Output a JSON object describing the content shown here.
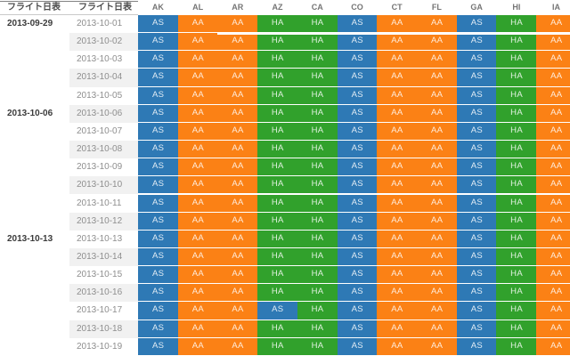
{
  "chart_data": {
    "type": "table",
    "title": "",
    "header": {
      "group_col_label": "フライト日表",
      "date_col_label": "フライト日表",
      "state_columns": [
        "AK",
        "AL",
        "AR",
        "AZ",
        "CA",
        "CO",
        "CT",
        "FL",
        "GA",
        "HI",
        "IA"
      ]
    },
    "legend": {
      "AS": "#2E79B5",
      "AA": "#FB8115",
      "HA": "#31A12C"
    },
    "groups": [
      {
        "label": "2013-09-29",
        "rows": [
          {
            "date": "2013-10-01",
            "values": [
              "AS",
              "AA",
              "AA",
              "HA",
              "HA",
              "AS",
              "AA",
              "AA",
              "AS",
              "HA",
              "AA"
            ]
          },
          {
            "date": "2013-10-02",
            "values": [
              "AS",
              "AA",
              "AA",
              "HA",
              "HA",
              "AS",
              "AA",
              "AA",
              "AS",
              "HA",
              "AA"
            ]
          },
          {
            "date": "2013-10-03",
            "values": [
              "AS",
              "AA",
              "AA",
              "HA",
              "HA",
              "AS",
              "AA",
              "AA",
              "AS",
              "HA",
              "AA"
            ]
          },
          {
            "date": "2013-10-04",
            "values": [
              "AS",
              "AA",
              "AA",
              "HA",
              "HA",
              "AS",
              "AA",
              "AA",
              "AS",
              "HA",
              "AA"
            ]
          },
          {
            "date": "2013-10-05",
            "values": [
              "AS",
              "AA",
              "AA",
              "HA",
              "HA",
              "AS",
              "AA",
              "AA",
              "AS",
              "HA",
              "AA"
            ]
          }
        ]
      },
      {
        "label": "2013-10-06",
        "rows": [
          {
            "date": "2013-10-06",
            "values": [
              "AS",
              "AA",
              "AA",
              "HA",
              "HA",
              "AS",
              "AA",
              "AA",
              "AS",
              "HA",
              "AA"
            ]
          },
          {
            "date": "2013-10-07",
            "values": [
              "AS",
              "AA",
              "AA",
              "HA",
              "HA",
              "AS",
              "AA",
              "AA",
              "AS",
              "HA",
              "AA"
            ]
          },
          {
            "date": "2013-10-08",
            "values": [
              "AS",
              "AA",
              "AA",
              "HA",
              "HA",
              "AS",
              "AA",
              "AA",
              "AS",
              "HA",
              "AA"
            ]
          },
          {
            "date": "2013-10-09",
            "values": [
              "AS",
              "AA",
              "AA",
              "HA",
              "HA",
              "AS",
              "AA",
              "AA",
              "AS",
              "HA",
              "AA"
            ]
          },
          {
            "date": "2013-10-10",
            "values": [
              "AS",
              "AA",
              "AA",
              "HA",
              "HA",
              "AS",
              "AA",
              "AA",
              "AS",
              "HA",
              "AA"
            ]
          },
          {
            "date": "2013-10-11",
            "values": [
              "AS",
              "AA",
              "AA",
              "HA",
              "HA",
              "AS",
              "AA",
              "AA",
              "AS",
              "HA",
              "AA"
            ]
          },
          {
            "date": "2013-10-12",
            "values": [
              "AS",
              "AA",
              "AA",
              "HA",
              "HA",
              "AS",
              "AA",
              "AA",
              "AS",
              "HA",
              "AA"
            ]
          }
        ]
      },
      {
        "label": "2013-10-13",
        "rows": [
          {
            "date": "2013-10-13",
            "values": [
              "AS",
              "AA",
              "AA",
              "HA",
              "HA",
              "AS",
              "AA",
              "AA",
              "AS",
              "HA",
              "AA"
            ]
          },
          {
            "date": "2013-10-14",
            "values": [
              "AS",
              "AA",
              "AA",
              "HA",
              "HA",
              "AS",
              "AA",
              "AA",
              "AS",
              "HA",
              "AA"
            ]
          },
          {
            "date": "2013-10-15",
            "values": [
              "AS",
              "AA",
              "AA",
              "HA",
              "HA",
              "AS",
              "AA",
              "AA",
              "AS",
              "HA",
              "AA"
            ]
          },
          {
            "date": "2013-10-16",
            "values": [
              "AS",
              "AA",
              "AA",
              "HA",
              "HA",
              "AS",
              "AA",
              "AA",
              "AS",
              "HA",
              "AA"
            ]
          },
          {
            "date": "2013-10-17",
            "values": [
              "AS",
              "AA",
              "AA",
              "AS",
              "HA",
              "AS",
              "AA",
              "AA",
              "AS",
              "HA",
              "AA"
            ]
          },
          {
            "date": "2013-10-18",
            "values": [
              "AS",
              "AA",
              "AA",
              "HA",
              "HA",
              "AS",
              "AA",
              "AA",
              "AS",
              "HA",
              "AA"
            ]
          },
          {
            "date": "2013-10-19",
            "values": [
              "AS",
              "AA",
              "AA",
              "HA",
              "HA",
              "AS",
              "AA",
              "AA",
              "AS",
              "HA",
              "AA"
            ]
          }
        ]
      }
    ],
    "highlight_underline": {
      "below_date": "2013-10-01",
      "from_column": "AR"
    }
  }
}
